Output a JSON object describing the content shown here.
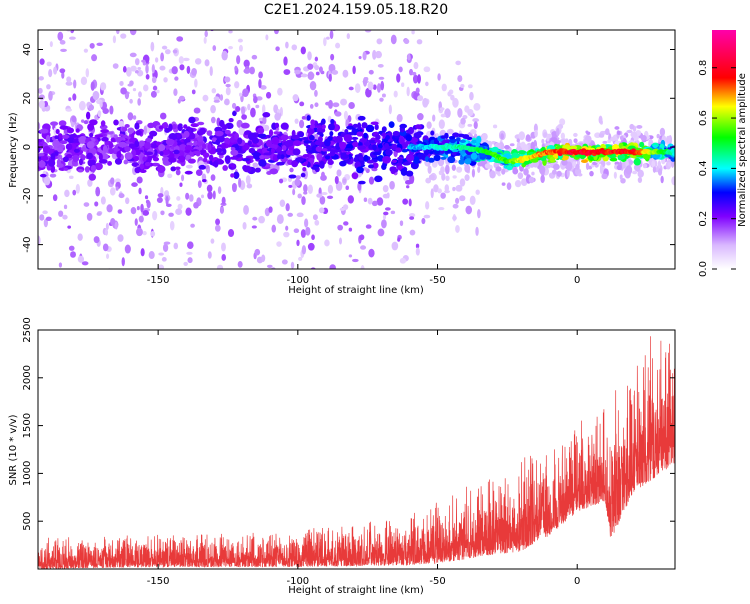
{
  "figure": {
    "title": "C2E1.2024.159.05.18.R20"
  },
  "chart_data": [
    {
      "type": "heatmap",
      "title": "C2E1.2024.159.05.18.R20",
      "xlabel": "Height of straight line (km)",
      "ylabel": "Frequency (Hz)",
      "xlim": [
        -193,
        35
      ],
      "ylim": [
        -50,
        48
      ],
      "xticks": [
        -150,
        -100,
        -50,
        0
      ],
      "yticks": [
        -40,
        -20,
        0,
        20,
        40
      ],
      "colorbar": {
        "label": "Normalized spectral amplitude",
        "range": [
          0,
          0.95
        ],
        "ticks": [
          0.0,
          0.2,
          0.4,
          0.6,
          0.8
        ],
        "colormap": "white-purple-blue-cyan-green-yellow-red-magenta"
      },
      "ridge": {
        "x": [
          -193,
          -150,
          -100,
          -60,
          -40,
          -30,
          -25,
          -20,
          -10,
          0,
          10,
          20,
          35
        ],
        "frequency": [
          0,
          0,
          0,
          0,
          0,
          -3,
          -6,
          -5,
          -2,
          -2,
          -2,
          -2,
          -2
        ],
        "peak_amplitude": [
          0.3,
          0.3,
          0.35,
          0.4,
          0.5,
          0.6,
          0.6,
          0.7,
          0.8,
          0.88,
          0.85,
          0.85,
          0.45
        ]
      }
    },
    {
      "type": "line",
      "xlabel": "Height of straight line (km)",
      "ylabel": "SNR (10 * v/v)",
      "xlim": [
        -193,
        35
      ],
      "ylim": [
        0,
        2500
      ],
      "xticks": [
        -150,
        -100,
        -50,
        0
      ],
      "yticks": [
        500,
        1000,
        1500,
        2000,
        2500
      ],
      "color": "#e83a3a",
      "envelope": {
        "x": [
          -193,
          -150,
          -120,
          -100,
          -80,
          -60,
          -50,
          -40,
          -30,
          -20,
          -10,
          0,
          10,
          12,
          20,
          30,
          35
        ],
        "low": [
          0,
          20,
          20,
          20,
          30,
          40,
          60,
          100,
          150,
          180,
          350,
          600,
          700,
          300,
          800,
          1000,
          1100
        ],
        "high": [
          300,
          330,
          350,
          370,
          420,
          550,
          650,
          800,
          900,
          1050,
          1200,
          1400,
          1700,
          1700,
          1900,
          2500,
          2200
        ]
      }
    }
  ]
}
